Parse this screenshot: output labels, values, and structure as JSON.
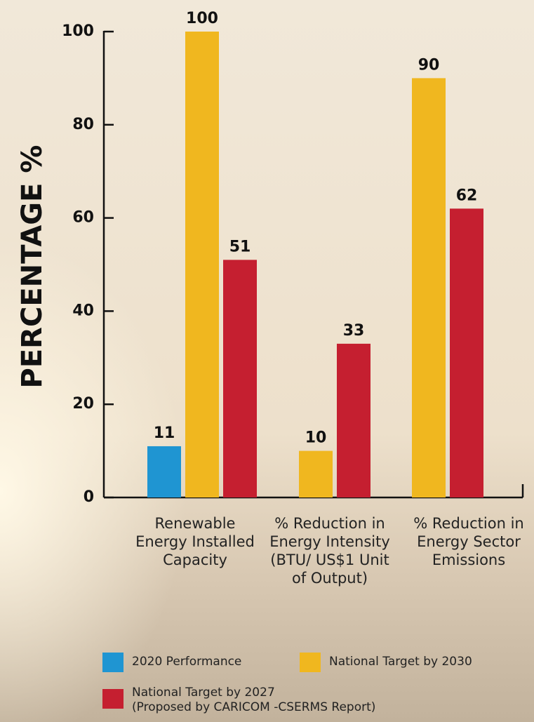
{
  "chart_data": {
    "type": "bar",
    "ylabel": "PERCENTAGE %",
    "categories": [
      "Renewable Energy Installed Capacity",
      "% Reduction in Energy Intensity (BTU/ US$1 Unit of Output)",
      "% Reduction in Energy Sector Emissions"
    ],
    "series": [
      {
        "name": "2020 Performance",
        "color": "#1f95d2",
        "values": [
          11,
          null,
          null
        ]
      },
      {
        "name": "National Target by 2030",
        "color": "#f0b71f",
        "values": [
          100,
          10,
          90
        ]
      },
      {
        "name": "National Target by 2027\n(Proposed by CARICOM -CSERMS Report)",
        "color": "#c51f30",
        "values": [
          51,
          33,
          62
        ]
      }
    ],
    "ylim": [
      0,
      100
    ],
    "yticks": [
      0,
      20,
      40,
      60,
      80,
      100
    ]
  }
}
